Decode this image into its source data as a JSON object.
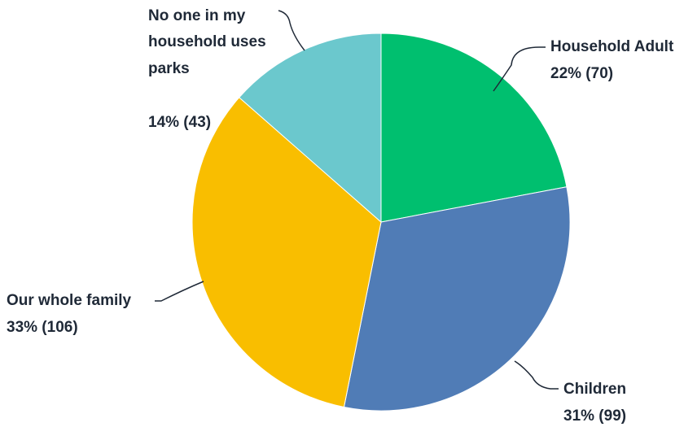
{
  "chart_data": {
    "type": "pie",
    "title": "",
    "slices": [
      {
        "name": "Household Adult",
        "value": 70,
        "percent": 22,
        "color": "#00BF6F",
        "label_lines": [
          "Household Adult"
        ],
        "value_label": "22% (70)"
      },
      {
        "name": "Children",
        "value": 99,
        "percent": 31,
        "color": "#507CB6",
        "label_lines": [
          "Children"
        ],
        "value_label": "31% (99)"
      },
      {
        "name": "Our whole family",
        "value": 106,
        "percent": 33,
        "color": "#F9BE00",
        "label_lines": [
          "Our whole family"
        ],
        "value_label": "33% (106)"
      },
      {
        "name": "No one in my household uses parks",
        "value": 43,
        "percent": 14,
        "color": "#6BC8CD",
        "label_lines": [
          "No one in my",
          "household uses",
          "parks"
        ],
        "value_label": "14% (43)"
      }
    ],
    "start_angle_deg": 0,
    "direction": "clockwise",
    "legend": "none"
  }
}
